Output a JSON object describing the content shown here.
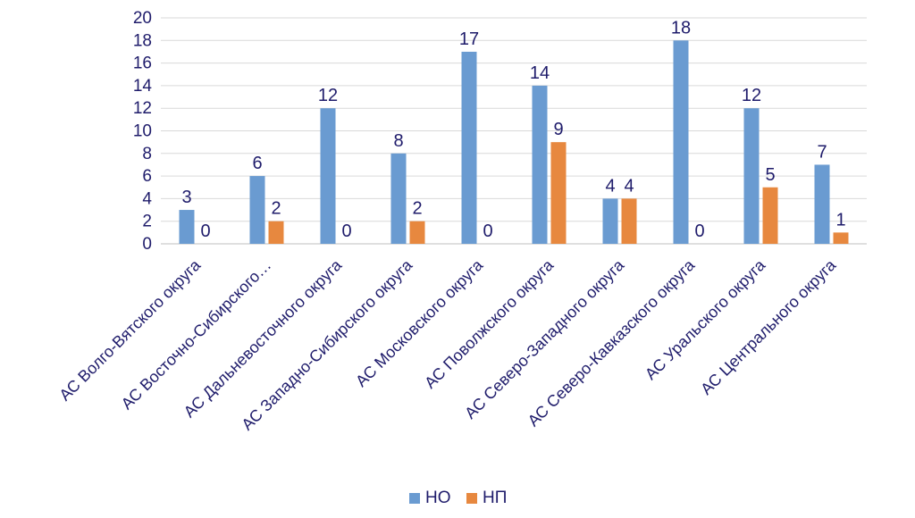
{
  "chart_data": {
    "type": "bar",
    "categories": [
      "АС Волго-Вятского округа",
      "АС Восточно-Сибирского…",
      "АС Дальневосточного округа",
      "АС Западно-Сибирского округа",
      "АС Московского округа",
      "АС Поволжского округа",
      "АС Северо-Западного округа",
      "АС Северо-Кавказского округа",
      "АС Уральского округа",
      "АС Центрального округа"
    ],
    "series": [
      {
        "name": "НО",
        "color": "#6a9bd1",
        "values": [
          3,
          6,
          12,
          8,
          17,
          14,
          4,
          18,
          12,
          7
        ]
      },
      {
        "name": "НП",
        "color": "#e7883f",
        "values": [
          0,
          2,
          0,
          2,
          0,
          9,
          4,
          0,
          5,
          1
        ]
      }
    ],
    "y_ticks": [
      "0",
      "2",
      "4",
      "6",
      "8",
      "10",
      "12",
      "14",
      "16",
      "18",
      "20"
    ],
    "ylim": [
      0,
      20
    ],
    "grid": true,
    "legend_position": "bottom",
    "title": "",
    "xlabel": "",
    "ylabel": ""
  }
}
